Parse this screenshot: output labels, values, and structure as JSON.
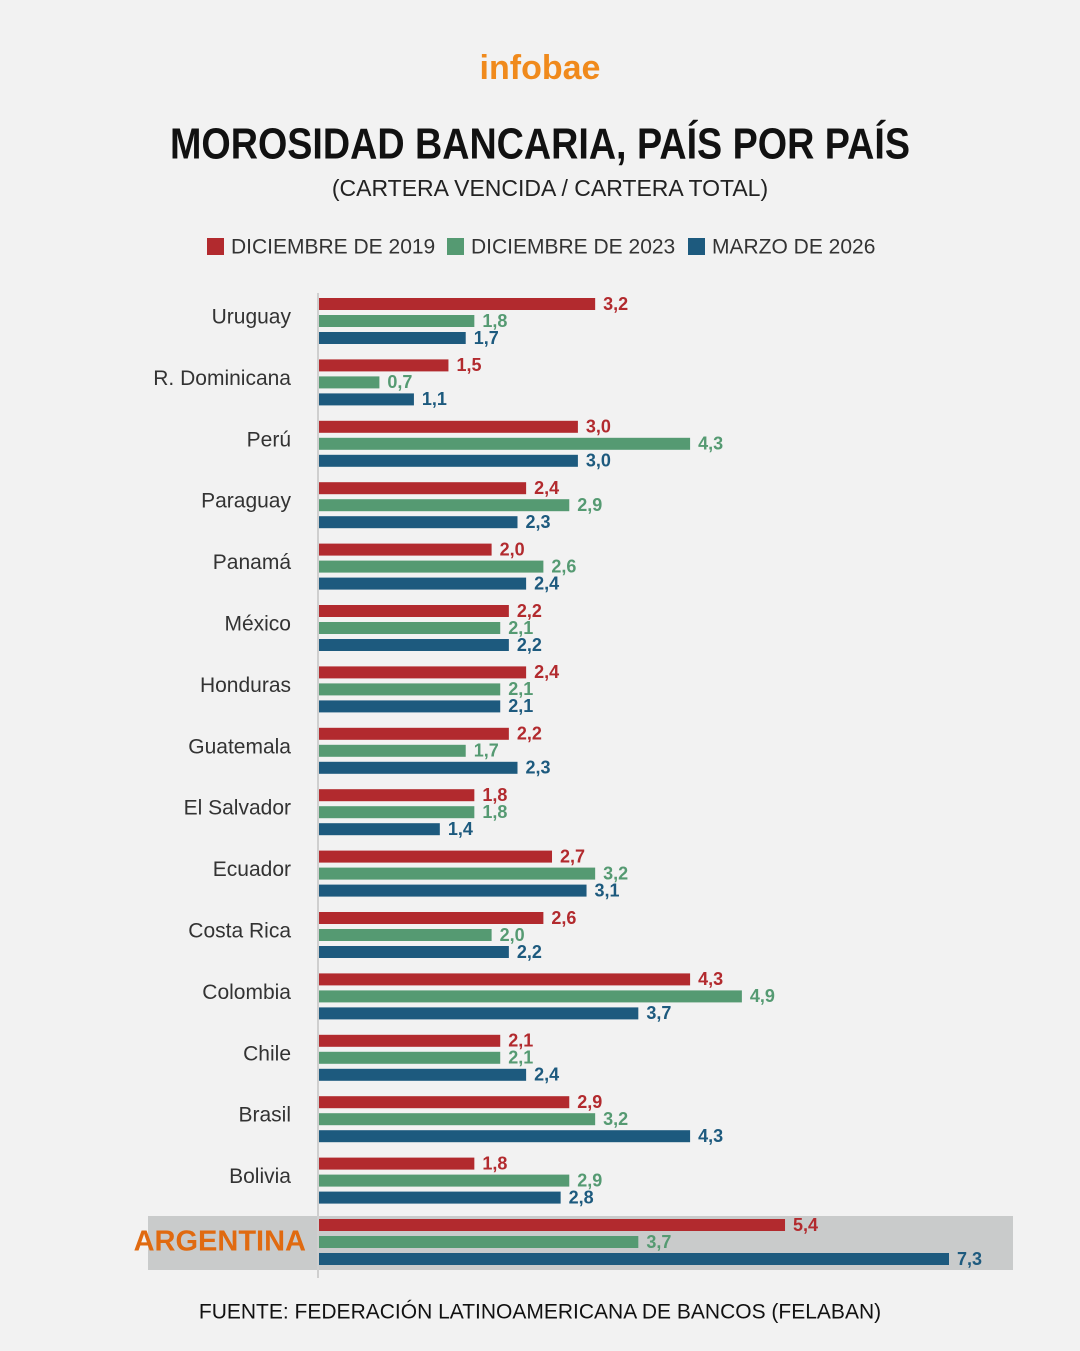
{
  "brand": "infobae",
  "chart_data": {
    "type": "hbar",
    "title": "MOROSIDAD BANCARIA, PAÍS POR PAÍS",
    "subtitle": "(CARTERA VENCIDA / CARTERA TOTAL)",
    "source": "FUENTE: FEDERACIÓN LATINOAMERICANA DE BANCOS (FELABAN)",
    "categories": [
      "Uruguay",
      "R. Dominicana",
      "Perú",
      "Paraguay",
      "Panamá",
      "México",
      "Honduras",
      "Guatemala",
      "El Salvador",
      "Ecuador",
      "Costa Rica",
      "Colombia",
      "Chile",
      "Brasil",
      "Bolivia",
      "ARGENTINA"
    ],
    "highlight": 15,
    "series": [
      {
        "name": "DICIEMBRE DE 2019",
        "color": "#b22a2e",
        "values": [
          3.2,
          1.5,
          3.0,
          2.4,
          2.0,
          2.2,
          2.4,
          2.2,
          1.8,
          2.7,
          2.6,
          4.3,
          2.1,
          2.9,
          1.8,
          5.4
        ],
        "value_labels": [
          "3,2",
          "1,5",
          "3,0",
          "2,4",
          "2,0",
          "2,2",
          "2,4",
          "2,2",
          "1,8",
          "2,7",
          "2,6",
          "4,3",
          "2,1",
          "2,9",
          "1,8",
          "5,4"
        ]
      },
      {
        "name": "DICIEMBRE DE 2023",
        "color": "#559a72",
        "values": [
          1.8,
          0.7,
          4.3,
          2.9,
          2.6,
          2.1,
          2.1,
          1.7,
          1.8,
          3.2,
          2.0,
          4.9,
          2.1,
          3.2,
          2.9,
          3.7
        ],
        "value_labels": [
          "1,8",
          "0,7",
          "4,3",
          "2,9",
          "2,6",
          "2,1",
          "2,1",
          "1,7",
          "1,8",
          "3,2",
          "2,0",
          "4,9",
          "2,1",
          "3,2",
          "2,9",
          "3,7"
        ]
      },
      {
        "name": "MARZO DE 2026",
        "color": "#1d5a7e",
        "values": [
          1.7,
          1.1,
          3.0,
          2.3,
          2.4,
          2.2,
          2.1,
          2.3,
          1.4,
          3.1,
          2.2,
          3.7,
          2.4,
          4.3,
          2.8,
          7.3
        ],
        "value_labels": [
          "1,7",
          "1,1",
          "3,0",
          "2,3",
          "2,4",
          "2,2",
          "2,1",
          "2,3",
          "1,4",
          "3,1",
          "2,2",
          "3,7",
          "2,4",
          "4,3",
          "2,8",
          "7,3"
        ]
      }
    ]
  }
}
